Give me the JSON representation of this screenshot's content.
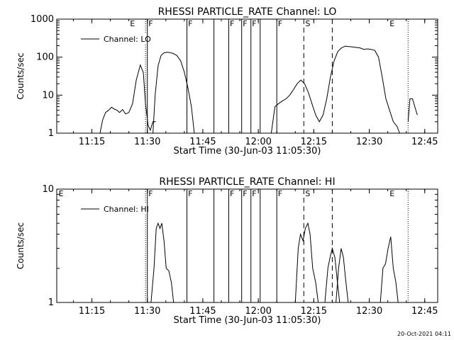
{
  "timestamp": "20-Oct-2021 04:11",
  "chart_data": [
    {
      "type": "line",
      "title": "RHESSI PARTICLE_RATE Channel: LO",
      "xlabel": "Start Time (30-Jun-03 11:05:30)",
      "ylabel": "Counts/sec",
      "y_scale": "log",
      "ylim": [
        1,
        1000
      ],
      "xlim_minutes_after_start": [
        0,
        103
      ],
      "x_ticks": [
        "11:15",
        "11:30",
        "11:45",
        "12:00",
        "12:15",
        "12:30",
        "12:45"
      ],
      "y_ticks": [
        "1",
        "10",
        "100",
        "1000"
      ],
      "legend": {
        "label": "Channel: LO",
        "position": "top-left"
      },
      "series": [
        {
          "name": "Channel: LO",
          "segments": [
            {
              "x": [
                11.7,
                12.4,
                13.2,
                14.0,
                14.8,
                15.6,
                16.3,
                17.0,
                17.8,
                18.6,
                19.5,
                20.5,
                21.5,
                22.6,
                23.4,
                24.0,
                24.7,
                25.3,
                26.0,
                26.8
              ],
              "y": [
                1,
                2.2,
                3.5,
                4.0,
                4.8,
                4.3,
                4.0,
                3.5,
                4.2,
                3.2,
                3.5,
                6,
                25,
                62,
                40,
                6,
                1.6,
                1.2,
                2,
                2
              ]
            },
            {
              "x": [
                26.0,
                26.6,
                27.4,
                28.2,
                29.0,
                29.8,
                30.6,
                31.5,
                32.5,
                33.5,
                34.5,
                35.5,
                36.4,
                37.2
              ],
              "y": [
                1,
                10,
                60,
                110,
                130,
                135,
                132,
                125,
                110,
                80,
                40,
                15,
                5,
                1
              ]
            },
            {
              "x": [
                58.0,
                59.0,
                60.0,
                61.0,
                62.0,
                63.0,
                64.0,
                65.0,
                66.0,
                67.0,
                68.0,
                69.0,
                70.0,
                71.0,
                72.0,
                73.0,
                74.0,
                75.0,
                76.0,
                77.0,
                78.0,
                79.0,
                80.0,
                81.0,
                82.0,
                83.0,
                84.0,
                85.0,
                86.0,
                87.0,
                88.0,
                89.0,
                90.0,
                91.0,
                92.0,
                92.7
              ],
              "y": [
                1,
                5,
                6,
                7,
                8,
                10,
                14,
                20,
                25,
                20,
                12,
                6,
                3,
                2,
                3,
                8,
                30,
                80,
                140,
                175,
                195,
                190,
                185,
                180,
                175,
                160,
                165,
                160,
                150,
                100,
                30,
                8,
                4,
                2,
                1.5,
                1
              ]
            },
            {
              "x": [
                95.0,
                95.5,
                96.2,
                96.8,
                97.5
              ],
              "y": [
                2,
                8,
                8,
                5,
                3
              ]
            }
          ]
        }
      ],
      "markers": {
        "solid": [
          24.5,
          35.2,
          42.5,
          46.5,
          50.0,
          52.5,
          55.0,
          59.5
        ],
        "dashed": [
          66.8,
          74.5
        ],
        "dotted": [
          24.0,
          95.0
        ],
        "letters": [
          {
            "text": "E",
            "x": 19.8
          },
          {
            "text": "F",
            "x": 24.8
          },
          {
            "text": "F",
            "x": 35.5
          },
          {
            "text": "F",
            "x": 46.8
          },
          {
            "text": "F",
            "x": 50.3
          },
          {
            "text": "F",
            "x": 52.8
          },
          {
            "text": "F",
            "x": 59.8
          },
          {
            "text": "S",
            "x": 67.2
          },
          {
            "text": "E",
            "x": 90.0
          }
        ]
      }
    },
    {
      "type": "line",
      "title": "RHESSI PARTICLE_RATE Channel: HI",
      "xlabel": "Start Time (30-Jun-03 11:05:30)",
      "ylabel": "Counts/sec",
      "y_scale": "log",
      "ylim": [
        1,
        10
      ],
      "xlim_minutes_after_start": [
        0,
        103
      ],
      "x_ticks": [
        "11:15",
        "11:30",
        "11:45",
        "12:00",
        "12:15",
        "12:30",
        "12:45"
      ],
      "y_ticks": [
        "1",
        "10"
      ],
      "legend": {
        "label": "Channel: HI",
        "position": "top-left"
      },
      "series": [
        {
          "name": "Channel: HI",
          "segments": [
            {
              "x": [
                25.5,
                26.3,
                26.9,
                27.4,
                27.9,
                28.4,
                29.0,
                29.6,
                30.3,
                31.0,
                31.6
              ],
              "y": [
                1,
                2,
                4.5,
                5,
                4.5,
                5,
                3.5,
                2,
                1.9,
                1.5,
                1
              ]
            },
            {
              "x": [
                64.5,
                65.3,
                65.9,
                66.6,
                67.2,
                67.9,
                68.5,
                69.2,
                70.0,
                70.7
              ],
              "y": [
                1,
                3,
                4,
                3.5,
                4.5,
                5,
                4,
                2,
                1.5,
                1
              ]
            },
            {
              "x": [
                72.5,
                73.3,
                73.9,
                74.5,
                75.2,
                75.9,
                76.5
              ],
              "y": [
                1,
                2,
                2.5,
                3,
                2.5,
                1.5,
                1
              ]
            },
            {
              "x": [
                75.5,
                76.2,
                76.9,
                77.5,
                78.1,
                78.8
              ],
              "y": [
                1,
                2,
                3,
                2.5,
                1.6,
                1
              ]
            },
            {
              "x": [
                87.5,
                88.2,
                88.9,
                89.6,
                90.3,
                91.0,
                91.7,
                92.3
              ],
              "y": [
                1,
                2,
                2.2,
                3,
                3.8,
                2,
                1.5,
                1
              ]
            }
          ]
        }
      ],
      "markers": {
        "solid": [
          24.5,
          35.2,
          42.5,
          46.5,
          50.0,
          52.5,
          55.0,
          59.5
        ],
        "dashed": [
          66.8,
          74.5
        ],
        "dotted": [
          24.0,
          95.0
        ],
        "letters": [
          {
            "text": "E",
            "x": 0.5
          },
          {
            "text": "F",
            "x": 24.8
          },
          {
            "text": "F",
            "x": 35.5
          },
          {
            "text": "F",
            "x": 46.8
          },
          {
            "text": "F",
            "x": 50.3
          },
          {
            "text": "F",
            "x": 52.8
          },
          {
            "text": "F",
            "x": 59.8
          },
          {
            "text": "S",
            "x": 67.2
          },
          {
            "text": "E",
            "x": 90.0
          }
        ]
      }
    }
  ]
}
